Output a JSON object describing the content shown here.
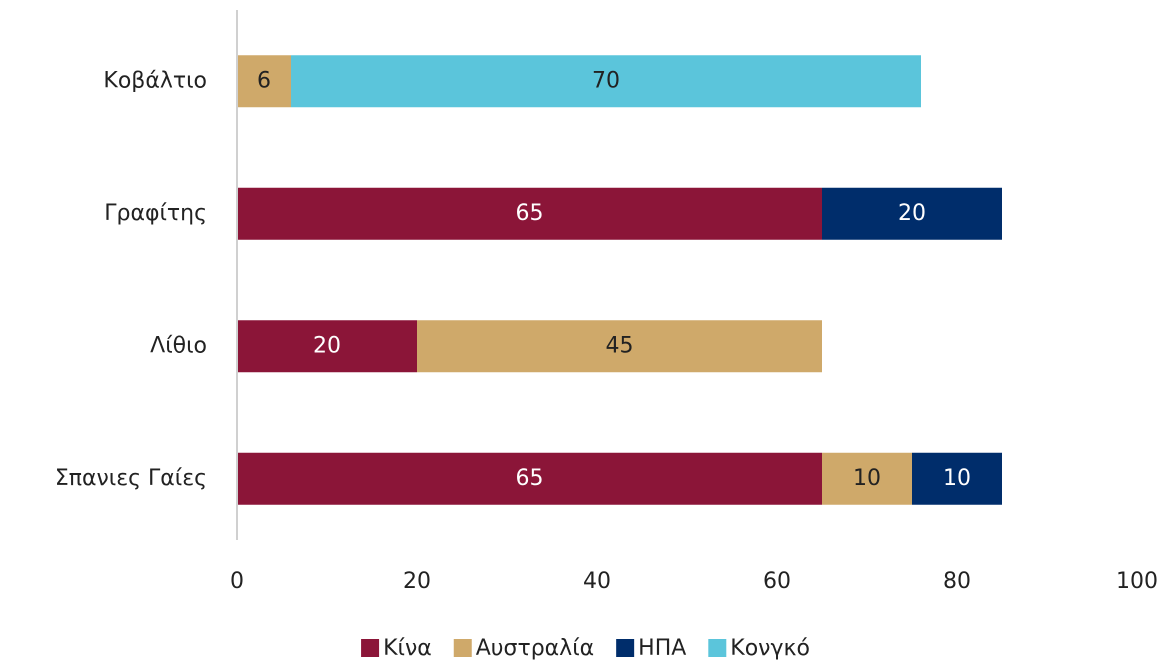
{
  "chart_data": {
    "type": "stacked-barh",
    "categories": [
      "Κοβάλτιο",
      "Γραφίτης",
      "Λίθιο",
      "Σπανιες Γαίες"
    ],
    "series": [
      {
        "name": "Κίνα",
        "color": "#8b1538",
        "values": [
          null,
          65,
          20,
          65
        ]
      },
      {
        "name": "Αυστραλία",
        "color": "#cfa96a",
        "values": [
          6,
          null,
          45,
          10
        ]
      },
      {
        "name": "ΗΠΑ",
        "color": "#002d6b",
        "values": [
          null,
          20,
          null,
          10
        ]
      },
      {
        "name": "Κονγκό",
        "color": "#5bc5db",
        "values": [
          70,
          null,
          null,
          null
        ]
      }
    ],
    "xlim": [
      0,
      100
    ],
    "xticks": [
      0,
      20,
      40,
      60,
      80,
      100
    ],
    "grid": false,
    "legend": "bottom"
  }
}
